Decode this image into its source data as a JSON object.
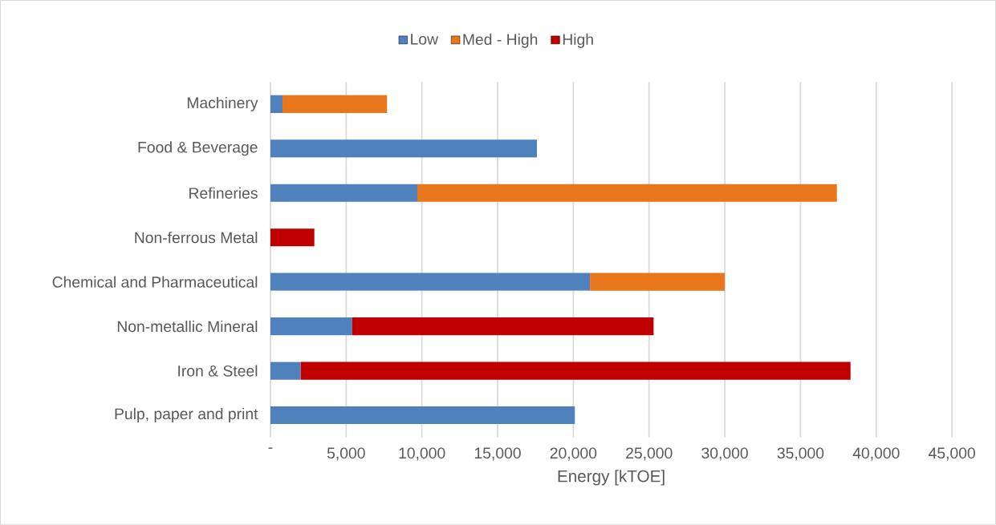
{
  "chart_data": {
    "type": "bar",
    "orientation": "horizontal",
    "stacked": true,
    "xlabel": "Energy [kTOE]",
    "categories": [
      "Machinery",
      "Food & Beverage",
      "Refineries",
      "Non-ferrous Metal",
      "Chemical and Pharmaceutical",
      "Non-metallic Mineral",
      "Iron & Steel",
      "Pulp, paper and print"
    ],
    "series": [
      {
        "name": "Low",
        "color": "#4f81bd",
        "values": [
          800,
          17600,
          9700,
          null,
          21100,
          5400,
          2000,
          20100
        ]
      },
      {
        "name": "Med - High",
        "color": "#e8761a",
        "values": [
          6900,
          null,
          27700,
          null,
          8900,
          null,
          null,
          null
        ]
      },
      {
        "name": "High",
        "color": "#c00000",
        "values": [
          null,
          null,
          null,
          2900,
          null,
          19900,
          36300,
          null
        ]
      }
    ],
    "xlim": [
      0,
      45000
    ],
    "xticks": [
      {
        "value": 0,
        "label": "-"
      },
      {
        "value": 5000,
        "label": "5,000"
      },
      {
        "value": 10000,
        "label": "10,000"
      },
      {
        "value": 15000,
        "label": "15,000"
      },
      {
        "value": 20000,
        "label": "20,000"
      },
      {
        "value": 25000,
        "label": "25,000"
      },
      {
        "value": 30000,
        "label": "30,000"
      },
      {
        "value": 35000,
        "label": "35,000"
      },
      {
        "value": 40000,
        "label": "40,000"
      },
      {
        "value": 45000,
        "label": "45,000"
      }
    ],
    "grid": "x",
    "legend": "top"
  }
}
